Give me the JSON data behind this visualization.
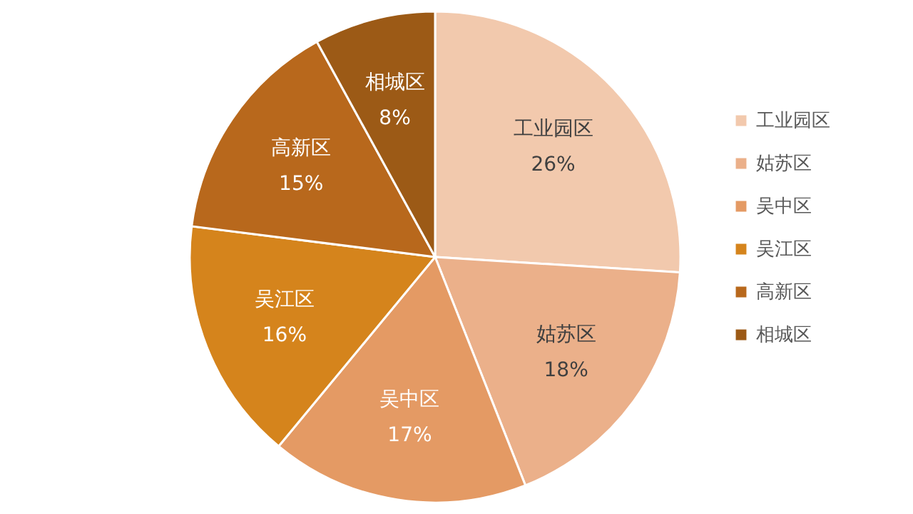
{
  "chart_data": {
    "type": "pie",
    "categories": [
      "工业园区",
      "姑苏区",
      "吴中区",
      "吴江区",
      "高新区",
      "相城区"
    ],
    "values": [
      26,
      18,
      17,
      16,
      15,
      8
    ],
    "value_labels": [
      "26%",
      "18%",
      "17%",
      "16%",
      "15%",
      "8%"
    ],
    "colors": [
      "#f2c9ad",
      "#ebb08a",
      "#e49a64",
      "#d5841c",
      "#b8681c",
      "#9c5a16"
    ],
    "legend": "right"
  }
}
